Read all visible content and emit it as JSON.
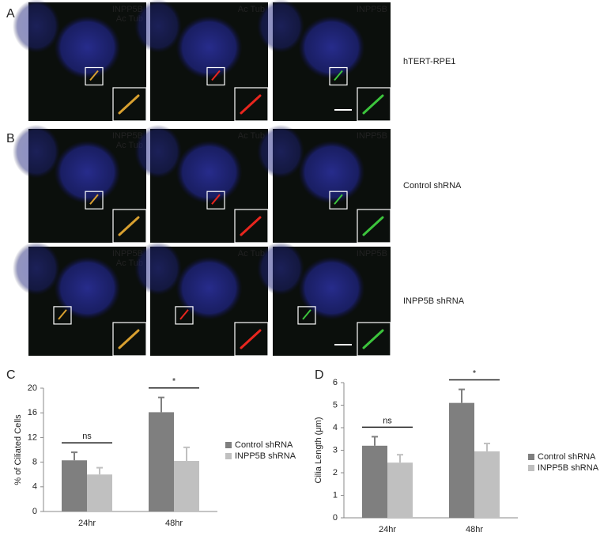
{
  "figure_panels": [
    {
      "letter": "A",
      "rows": [
        {
          "label": "hTERT-RPE1",
          "images": [
            [
              {
                "text": "INPP5B",
                "color": "#3cc43c"
              },
              {
                "text": "Ac Tub",
                "color": "#e8261e"
              }
            ],
            [
              {
                "text": "Ac Tub",
                "color": "#e8261e"
              }
            ],
            [
              {
                "text": "INPP5B",
                "color": "#3cc43c"
              }
            ]
          ]
        }
      ]
    },
    {
      "letter": "B",
      "rows": [
        {
          "label": "Control shRNA",
          "images": [
            [
              {
                "text": "INPP5B",
                "color": "#3cc43c"
              },
              {
                "text": "Ac Tub",
                "color": "#e8261e"
              }
            ],
            [
              {
                "text": "Ac Tub",
                "color": "#e8261e"
              }
            ],
            [
              {
                "text": "INPP5B",
                "color": "#3cc43c"
              }
            ]
          ]
        },
        {
          "label": "INPP5B shRNA",
          "images": [
            [
              {
                "text": "INPP5B",
                "color": "#3cc43c"
              },
              {
                "text": "Ac Tub",
                "color": "#e8261e"
              }
            ],
            [
              {
                "text": "Ac Tub",
                "color": "#e8261e"
              }
            ],
            [
              {
                "text": "INPP5B",
                "color": "#3cc43c"
              }
            ]
          ]
        }
      ]
    }
  ],
  "chart_data": [
    {
      "type": "bar",
      "panel": "C",
      "y_label": "% of Ciliated Cells",
      "categories": [
        "24hr",
        "48hr"
      ],
      "series": [
        {
          "name": "Control shRNA",
          "color": "#7f7f7f",
          "values": [
            8.3,
            16.1
          ],
          "errors": [
            1.3,
            2.4
          ]
        },
        {
          "name": "INPP5B shRNA",
          "color": "#c0c0c0",
          "values": [
            6.0,
            8.2
          ],
          "errors": [
            1.1,
            2.2
          ]
        }
      ],
      "annotations": [
        "ns",
        "*"
      ],
      "ylim": [
        0,
        20
      ],
      "yticks": [
        0,
        4,
        8,
        12,
        16,
        20
      ],
      "legend": "right"
    },
    {
      "type": "bar",
      "panel": "D",
      "y_label": "Cilia Length (μm)",
      "categories": [
        "24hr",
        "48hr"
      ],
      "series": [
        {
          "name": "Control shRNA",
          "color": "#7f7f7f",
          "values": [
            3.2,
            5.1
          ],
          "errors": [
            0.4,
            0.6
          ]
        },
        {
          "name": "INPP5B shRNA",
          "color": "#c0c0c0",
          "values": [
            2.45,
            2.95
          ],
          "errors": [
            0.35,
            0.35
          ]
        }
      ],
      "annotations": [
        "ns",
        "*"
      ],
      "ylim": [
        0,
        6
      ],
      "yticks": [
        0,
        1,
        2,
        3,
        4,
        5,
        6
      ],
      "legend": "right"
    }
  ]
}
